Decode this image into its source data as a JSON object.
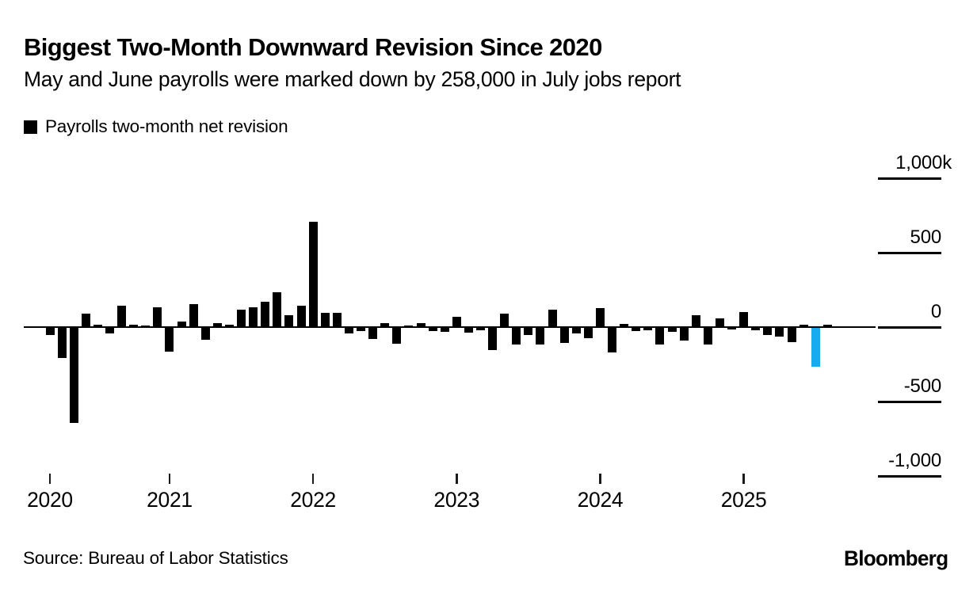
{
  "header": {
    "title": "Biggest Two-Month Downward Revision Since 2020",
    "subtitle": "May and June payrolls were marked down by 258,000 in July jobs report"
  },
  "legend": {
    "label": "Payrolls two-month net revision",
    "swatch_color": "#000000"
  },
  "source": "Source: Bureau of Labor Statistics",
  "brand": "Bloomberg",
  "chart_data": {
    "type": "bar",
    "title": "Biggest Two-Month Downward Revision Since 2020",
    "series_name": "Payrolls two-month net revision",
    "unit": "thousands of payrolls (k)",
    "frequency": "monthly",
    "x_start": "Mar 2020",
    "x_end": "Aug 2025",
    "values": [
      -50,
      -200,
      -640,
      90,
      17,
      -39,
      145,
      15,
      11,
      135,
      -159,
      38,
      156,
      -78,
      27,
      15,
      119,
      134,
      169,
      235,
      82,
      141,
      709,
      95,
      95,
      -39,
      -22,
      -74,
      28,
      -107,
      11,
      29,
      -23,
      -28,
      71,
      -34,
      -17,
      -149,
      93,
      -110,
      -49,
      -110,
      119,
      -101,
      -35,
      -71,
      126,
      -167,
      22,
      -22,
      -15,
      -111,
      -29,
      -86,
      80,
      -112,
      56,
      -8,
      100,
      -15,
      -48,
      -58,
      -95,
      16,
      -258,
      15
    ],
    "highlight_index": 64,
    "highlight_value": -258,
    "highlight_note": "July 2025: May and June payrolls marked down by 258,000",
    "bar_color": "#000000",
    "highlight_color": "#18ACEE",
    "x_tick_years": [
      "2020",
      "2021",
      "2022",
      "2023",
      "2024",
      "2025"
    ],
    "y_ticks": [
      "1,000k",
      "500",
      "0",
      "-500",
      "-1,000"
    ],
    "y_tick_values": [
      1000,
      500,
      0,
      -500,
      -1000
    ],
    "ylim": [
      -1000,
      1000
    ],
    "grid": "right-edge tick segments only, zero axis line across plot",
    "legend_position": "top-left",
    "y_axis_position": "right"
  }
}
